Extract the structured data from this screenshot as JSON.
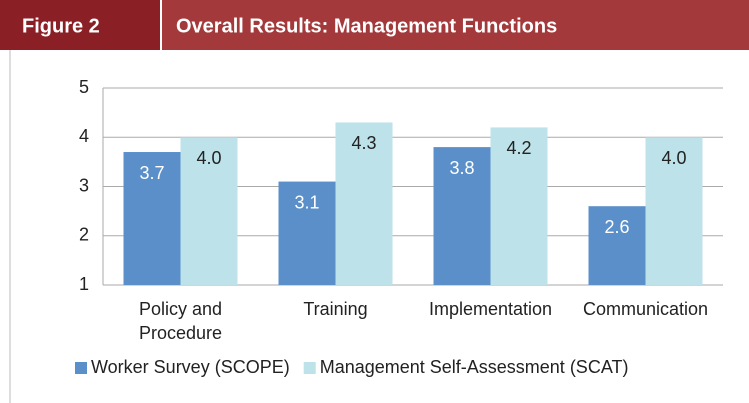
{
  "chart_data": {
    "type": "bar",
    "figure_label": "Figure 2",
    "title": "Overall Results: Management Functions",
    "categories": [
      "Policy and\nProcedure",
      "Training",
      "Implementation",
      "Communication"
    ],
    "series": [
      {
        "name": "Worker Survey (SCOPE)",
        "color": "#5b8fc9",
        "values": [
          3.7,
          3.1,
          3.8,
          2.6
        ],
        "value_labels": [
          "3.7",
          "3.1",
          "3.8",
          "2.6"
        ],
        "label_color": "#ffffff"
      },
      {
        "name": "Management Self-Assessment (SCAT)",
        "color": "#bde2ea",
        "values": [
          4.0,
          4.3,
          4.2,
          4.0
        ],
        "value_labels": [
          "4.0",
          "4.3",
          "4.2",
          "4.0"
        ],
        "label_color": "#222222"
      }
    ],
    "ylim": [
      1,
      5
    ],
    "yticks": [
      1,
      2,
      3,
      4,
      5
    ],
    "grid": true,
    "legend": "bottom"
  }
}
